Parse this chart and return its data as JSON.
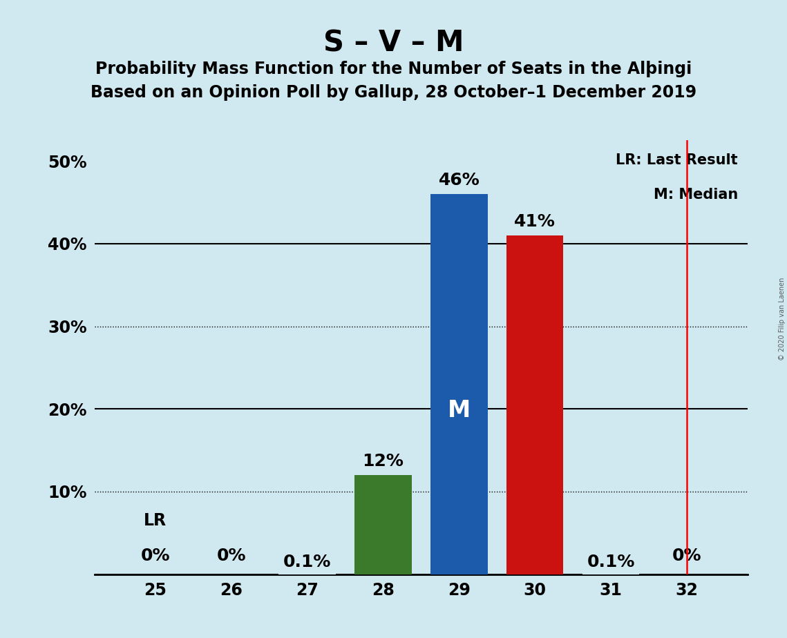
{
  "title": "S – V – M",
  "subtitle1": "Probability Mass Function for the Number of Seats in the Alþingi",
  "subtitle2": "Based on an Opinion Poll by Gallup, 28 October–1 December 2019",
  "watermark": "© 2020 Filip van Laenen",
  "seats": [
    25,
    26,
    27,
    28,
    29,
    30,
    31,
    32
  ],
  "probabilities": [
    0.0,
    0.0,
    0.001,
    0.12,
    0.46,
    0.41,
    0.001,
    0.0
  ],
  "bar_labels": [
    "0%",
    "0%",
    "0.1%",
    "12%",
    "46%",
    "41%",
    "0.1%",
    "0%"
  ],
  "bar_colors": [
    "#d0e8f0",
    "#d0e8f0",
    "#d0e8f0",
    "#3a7a2a",
    "#1c5aab",
    "#cc1111",
    "#d0e8f0",
    "#d0e8f0"
  ],
  "median_seat": 29,
  "lr_seat": 32,
  "median_label": "M",
  "legend_lr": "LR: Last Result",
  "legend_m": "M: Median",
  "background_color": "#d0e8f0",
  "plot_area_color": "#d0e8f0",
  "ytick_vals": [
    0.0,
    0.1,
    0.2,
    0.3,
    0.4,
    0.5
  ],
  "ytick_labels": [
    "",
    "10%",
    "20%",
    "30%",
    "40%",
    "50%"
  ],
  "solid_yticks": [
    0.0,
    0.2,
    0.4
  ],
  "dotted_yticks": [
    0.1,
    0.3
  ],
  "xlim": [
    24.2,
    32.8
  ],
  "ylim": [
    0,
    0.525
  ],
  "title_fontsize": 30,
  "subtitle_fontsize": 17,
  "tick_fontsize": 17,
  "bar_label_fontsize": 18,
  "median_label_fontsize": 24,
  "legend_fontsize": 15,
  "lr_label_fontsize": 17
}
